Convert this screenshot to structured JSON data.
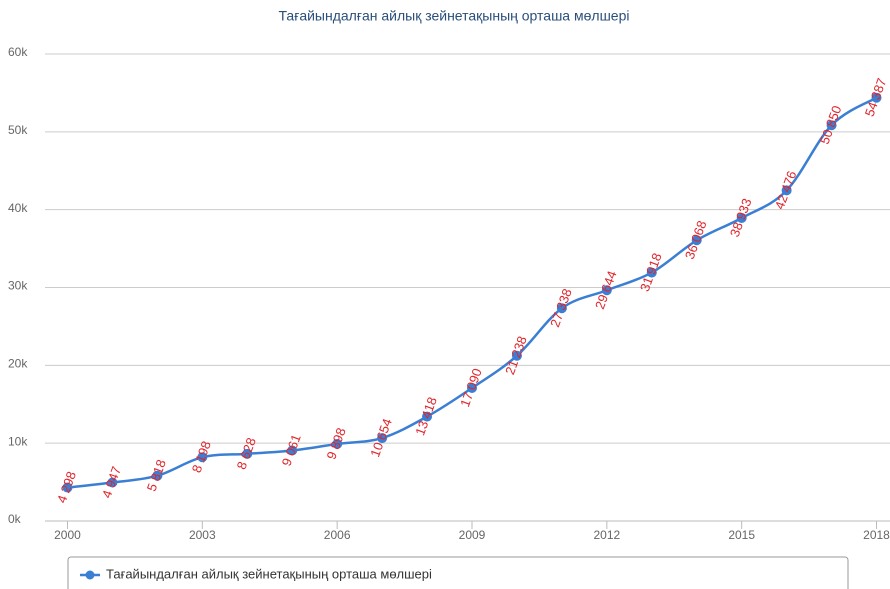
{
  "chart_data": {
    "type": "line",
    "title": "Тағайындалған айлық зейнетақының орташа мөлшері",
    "x": [
      2000,
      2001,
      2002,
      2003,
      2004,
      2005,
      2006,
      2007,
      2008,
      2009,
      2010,
      2011,
      2012,
      2013,
      2014,
      2015,
      2016,
      2017,
      2018
    ],
    "series": [
      {
        "name": "Тағайындалған айлық зейнетақының орташа мөлшері",
        "color": "#3b7fd4",
        "values": [
          4298,
          4947,
          5818,
          8198,
          8628,
          9061,
          9898,
          10654,
          13418,
          17090,
          21238,
          27338,
          29644,
          31918,
          36068,
          38933,
          42476,
          50850,
          54387
        ],
        "value_labels": [
          "4 298",
          "4 947",
          "5 818",
          "8 198",
          "8 628",
          "9 061",
          "9 898",
          "10 654",
          "13 418",
          "17 090",
          "21 238",
          "27 338",
          "29 644",
          "31 918",
          "36 068",
          "38 933",
          "42 476",
          "50 850",
          "54 387"
        ]
      }
    ],
    "xlim": [
      1999.5,
      2018.3
    ],
    "xticks": [
      2000,
      2003,
      2006,
      2009,
      2012,
      2015,
      2018
    ],
    "ylim": [
      0,
      60000
    ],
    "yticks": [
      {
        "value": 0,
        "label": "0k"
      },
      {
        "value": 10000,
        "label": "10k"
      },
      {
        "value": 20000,
        "label": "20k"
      },
      {
        "value": 30000,
        "label": "30k"
      },
      {
        "value": 40000,
        "label": "40k"
      },
      {
        "value": 50000,
        "label": "50k"
      },
      {
        "value": 60000,
        "label": "60k"
      }
    ],
    "grid": true
  }
}
